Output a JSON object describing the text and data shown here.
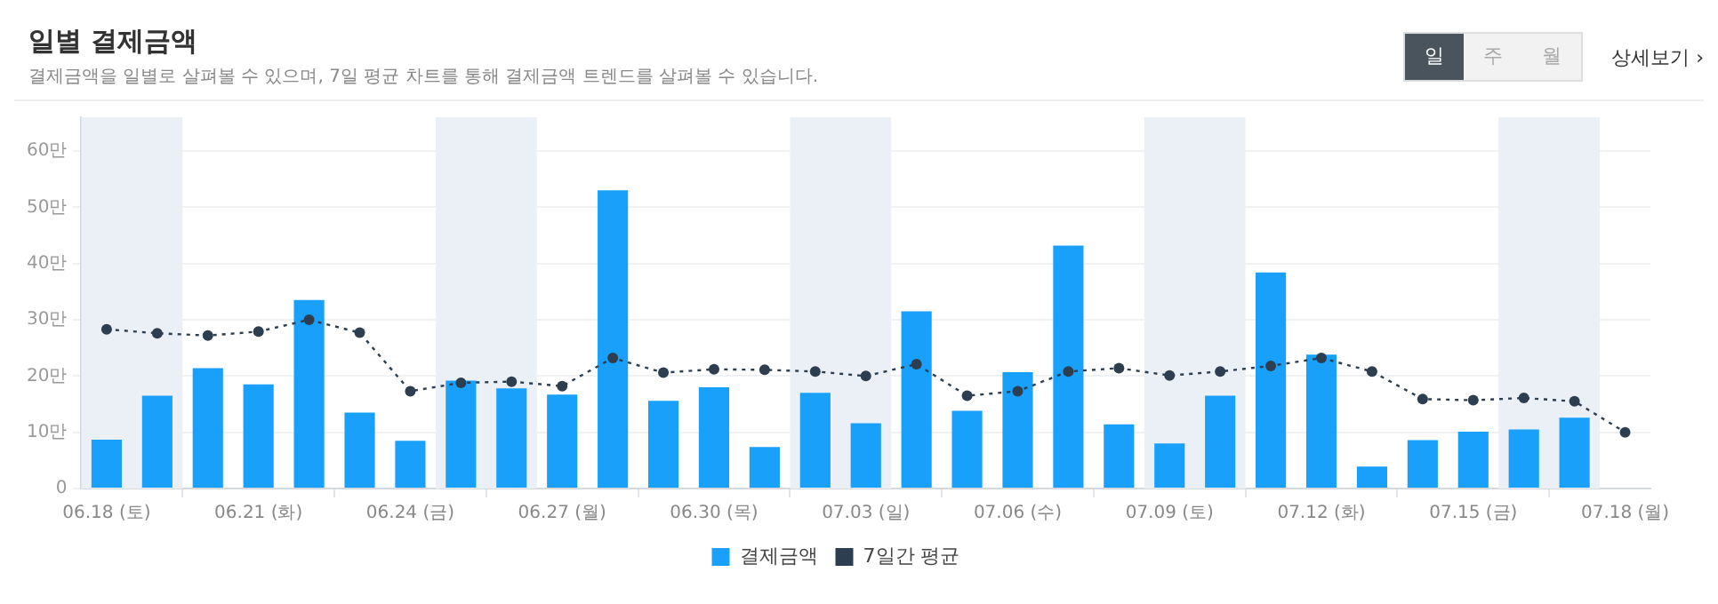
{
  "chart_data": {
    "type": "bar",
    "title": "일별 결제금액",
    "subtitle": "결제금액을 일별로 살펴볼 수 있으며, 7일 평균 차트를 통해 결제금액 트렌드를 살펴볼 수 있습니다.",
    "annotations": [
      "일",
      "주",
      "월",
      "상세보기 ›"
    ],
    "x": [
      "--06-18",
      "--06-19",
      "--06-20",
      "--06-21",
      "--06-22",
      "--06-23",
      "--06-24",
      "--06-25",
      "--06-26",
      "--06-27",
      "--06-28",
      "--06-29",
      "--06-30",
      "--07-01",
      "--07-02",
      "--07-03",
      "--07-04",
      "--07-05",
      "--07-06",
      "--07-07",
      "--07-08",
      "--07-09",
      "--07-10",
      "--07-11",
      "--07-12",
      "--07-13",
      "--07-14",
      "--07-15",
      "--07-16",
      "--07-17",
      "--07-18"
    ],
    "series": [
      {
        "name": "결제금액",
        "color": "#18a0fb",
        "values": [
          8.7,
          16.5,
          21.4,
          18.5,
          33.5,
          13.5,
          8.5,
          19.2,
          17.8,
          16.7,
          53,
          15.6,
          18,
          7.4,
          17,
          11.6,
          31.5,
          13.8,
          20.7,
          43.2,
          11.4,
          8,
          16.5,
          38.4,
          23.8,
          3.9,
          8.6,
          10.1,
          10.5,
          12.6,
          null
        ]
      },
      {
        "name": "7일간 평균",
        "type": "line",
        "color": "#2c3e50",
        "marker": "circle",
        "line_style": "dotted",
        "values": [
          28.3,
          27.6,
          27.2,
          27.9,
          30,
          27.7,
          17.3,
          18.8,
          19,
          18.2,
          23.2,
          20.6,
          21.2,
          21.1,
          20.8,
          20,
          22.1,
          16.5,
          17.3,
          20.8,
          21.4,
          20.1,
          20.8,
          21.8,
          23.2,
          20.8,
          15.9,
          15.7,
          16.1,
          15.5,
          10
        ]
      }
    ],
    "xlim": [
      "--06-17T12:00",
      "--07-18T12:00"
    ],
    "xticks": [
      {
        "value": "--06-18",
        "label": "06.18 (토)"
      },
      {
        "value": "--06-21",
        "label": "06.21 (화)"
      },
      {
        "value": "--06-24",
        "label": "06.24 (금)"
      },
      {
        "value": "--06-27",
        "label": "06.27 (월)"
      },
      {
        "value": "--06-30",
        "label": "06.30 (목)"
      },
      {
        "value": "--07-03",
        "label": "07.03 (일)"
      },
      {
        "value": "--07-06",
        "label": "07.06 (수)"
      },
      {
        "value": "--07-09",
        "label": "07.09 (토)"
      },
      {
        "value": "--07-12",
        "label": "07.12 (화)"
      },
      {
        "value": "--07-15",
        "label": "07.15 (금)"
      },
      {
        "value": "--07-18",
        "label": "07.18 (월)"
      }
    ],
    "ylim": [
      0,
      66
    ],
    "yticks": [
      0,
      {
        "value": 10,
        "label": "10만"
      },
      {
        "value": 20,
        "label": "20만"
      },
      {
        "value": 30,
        "label": "30만"
      },
      {
        "value": 40,
        "label": "40만"
      },
      {
        "value": 50,
        "label": "50만"
      },
      {
        "value": 60,
        "label": "60만"
      }
    ],
    "bands": [
      {
        "axis": "x",
        "from": "--06-17T12:00",
        "to": "--06-19T12:00",
        "color": "#ebf0f6"
      },
      {
        "axis": "x",
        "from": "--06-24T12:00",
        "to": "--06-26T12:00",
        "color": "#ebf0f6"
      },
      {
        "axis": "x",
        "from": "--07-01T12:00",
        "to": "--07-03T12:00",
        "color": "#ebf0f6"
      },
      {
        "axis": "x",
        "from": "--07-08T12:00",
        "to": "--07-10T12:00",
        "color": "#ebf0f6"
      },
      {
        "axis": "x",
        "from": "--07-15T12:00",
        "to": "--07-17T12:00",
        "color": "#ebf0f6"
      }
    ],
    "grid": "y",
    "legend": "bottom"
  }
}
